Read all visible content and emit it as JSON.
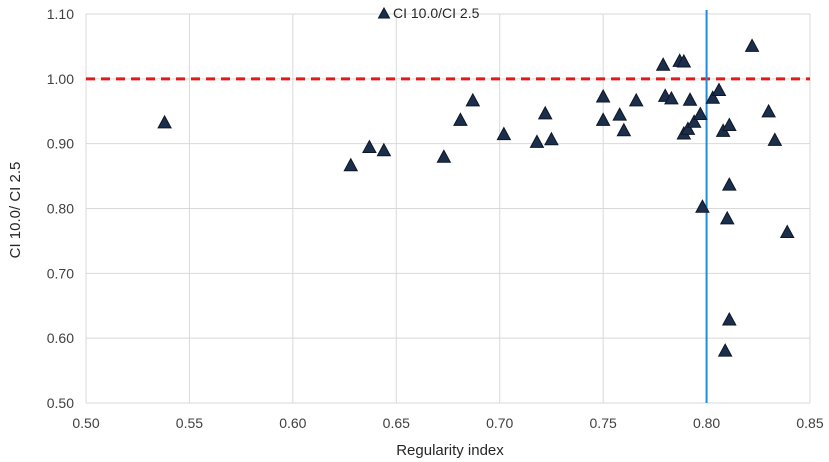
{
  "chart_data": {
    "type": "scatter",
    "xlabel": "Regularity index",
    "ylabel": "CI 10.0/ CI 2.5",
    "xlim": [
      0.5,
      0.85
    ],
    "ylim": [
      0.5,
      1.1
    ],
    "x_ticks": [
      "0.50",
      "0.55",
      "0.60",
      "0.65",
      "0.70",
      "0.75",
      "0.80",
      "0.85"
    ],
    "y_ticks": [
      "0.50",
      "0.60",
      "0.70",
      "0.80",
      "0.90",
      "1.00",
      "1.10"
    ],
    "grid": true,
    "legend": "top-center",
    "reference_lines": [
      {
        "orientation": "horizontal",
        "value": 1.0,
        "style": "dashed",
        "color": "#e31a1c"
      },
      {
        "orientation": "vertical",
        "value": 0.8,
        "style": "solid",
        "color": "#1f8dd6"
      }
    ],
    "series": [
      {
        "name": "CI 10.0/CI 2.5",
        "marker": "triangle",
        "color": "#1b2e4b",
        "points": [
          {
            "x": 0.538,
            "y": 0.932
          },
          {
            "x": 0.628,
            "y": 0.866
          },
          {
            "x": 0.637,
            "y": 0.894
          },
          {
            "x": 0.644,
            "y": 0.889
          },
          {
            "x": 0.673,
            "y": 0.879
          },
          {
            "x": 0.681,
            "y": 0.936
          },
          {
            "x": 0.687,
            "y": 0.966
          },
          {
            "x": 0.702,
            "y": 0.914
          },
          {
            "x": 0.718,
            "y": 0.902
          },
          {
            "x": 0.722,
            "y": 0.946
          },
          {
            "x": 0.725,
            "y": 0.906
          },
          {
            "x": 0.75,
            "y": 0.972
          },
          {
            "x": 0.75,
            "y": 0.936
          },
          {
            "x": 0.758,
            "y": 0.944
          },
          {
            "x": 0.76,
            "y": 0.92
          },
          {
            "x": 0.766,
            "y": 0.966
          },
          {
            "x": 0.779,
            "y": 1.021
          },
          {
            "x": 0.78,
            "y": 0.973
          },
          {
            "x": 0.783,
            "y": 0.969
          },
          {
            "x": 0.787,
            "y": 1.027
          },
          {
            "x": 0.789,
            "y": 1.026
          },
          {
            "x": 0.789,
            "y": 0.915
          },
          {
            "x": 0.791,
            "y": 0.922
          },
          {
            "x": 0.792,
            "y": 0.967
          },
          {
            "x": 0.794,
            "y": 0.933
          },
          {
            "x": 0.797,
            "y": 0.945
          },
          {
            "x": 0.798,
            "y": 0.802
          },
          {
            "x": 0.803,
            "y": 0.97
          },
          {
            "x": 0.806,
            "y": 0.982
          },
          {
            "x": 0.808,
            "y": 0.919
          },
          {
            "x": 0.809,
            "y": 0.58
          },
          {
            "x": 0.81,
            "y": 0.784
          },
          {
            "x": 0.811,
            "y": 0.928
          },
          {
            "x": 0.811,
            "y": 0.836
          },
          {
            "x": 0.811,
            "y": 0.628
          },
          {
            "x": 0.822,
            "y": 1.05
          },
          {
            "x": 0.83,
            "y": 0.949
          },
          {
            "x": 0.833,
            "y": 0.905
          },
          {
            "x": 0.839,
            "y": 0.763
          }
        ]
      }
    ]
  }
}
